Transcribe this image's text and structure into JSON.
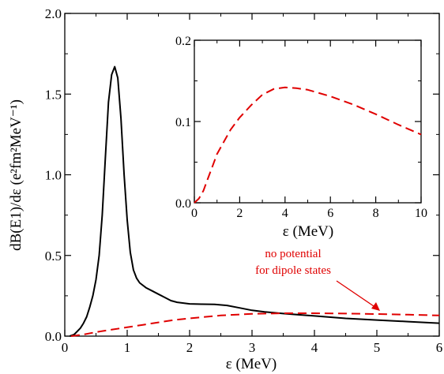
{
  "chart_data": [
    {
      "type": "line",
      "xlabel": "ε  (MeV)",
      "ylabel": "dB(E1)/dε  (e²fm²MeV⁻¹)",
      "xlim": [
        0,
        6
      ],
      "ylim": [
        0,
        2.0
      ],
      "x_ticks": [
        "0",
        "1",
        "2",
        "3",
        "4",
        "5",
        "6"
      ],
      "y_ticks": [
        "0.0",
        "0.5",
        "1.0",
        "1.5",
        "2.0"
      ],
      "series": [
        {
          "color": "#000000",
          "style": "solid",
          "x": [
            0.08,
            0.15,
            0.2,
            0.25,
            0.3,
            0.35,
            0.4,
            0.45,
            0.5,
            0.55,
            0.6,
            0.65,
            0.7,
            0.75,
            0.8,
            0.85,
            0.9,
            0.95,
            1.0,
            1.05,
            1.1,
            1.15,
            1.2,
            1.3,
            1.4,
            1.5,
            1.6,
            1.7,
            1.8,
            1.9,
            2.0,
            2.2,
            2.4,
            2.6,
            2.8,
            3.0,
            3.2,
            3.5,
            4.0,
            4.5,
            5.0,
            5.5,
            6.0
          ],
          "y": [
            0.0,
            0.01,
            0.03,
            0.05,
            0.08,
            0.12,
            0.18,
            0.25,
            0.35,
            0.5,
            0.75,
            1.1,
            1.45,
            1.62,
            1.67,
            1.6,
            1.35,
            1.0,
            0.72,
            0.52,
            0.41,
            0.36,
            0.33,
            0.3,
            0.28,
            0.26,
            0.24,
            0.22,
            0.21,
            0.205,
            0.2,
            0.198,
            0.197,
            0.19,
            0.175,
            0.16,
            0.15,
            0.14,
            0.125,
            0.11,
            0.1,
            0.09,
            0.08
          ]
        },
        {
          "color": "#e00000",
          "style": "dashed",
          "x": [
            0.1,
            0.3,
            0.5,
            0.75,
            1.0,
            1.25,
            1.5,
            1.75,
            2.0,
            2.5,
            3.0,
            3.5,
            4.0,
            4.5,
            5.0,
            5.5,
            6.0
          ],
          "y": [
            0.0,
            0.01,
            0.025,
            0.04,
            0.055,
            0.07,
            0.085,
            0.1,
            0.11,
            0.128,
            0.138,
            0.142,
            0.142,
            0.14,
            0.137,
            0.133,
            0.128
          ]
        }
      ],
      "annotations": [
        "no potential",
        "for dipole states"
      ]
    },
    {
      "type": "line",
      "xlabel": "ε  (MeV)",
      "ylabel": "",
      "xlim": [
        0,
        10
      ],
      "ylim": [
        0,
        0.2
      ],
      "x_ticks": [
        "0",
        "2",
        "4",
        "6",
        "8",
        "10"
      ],
      "y_ticks": [
        "0.0",
        "0.1",
        "0.2"
      ],
      "series": [
        {
          "color": "#e00000",
          "style": "dashed",
          "x": [
            0.0,
            0.2,
            0.4,
            0.6,
            0.8,
            1.0,
            1.3,
            1.6,
            2.0,
            2.5,
            3.0,
            3.5,
            4.0,
            4.5,
            5.0,
            6.0,
            7.0,
            8.0,
            9.0,
            10.0
          ],
          "y": [
            0.0,
            0.005,
            0.015,
            0.03,
            0.045,
            0.06,
            0.075,
            0.09,
            0.105,
            0.12,
            0.133,
            0.14,
            0.142,
            0.141,
            0.139,
            0.131,
            0.121,
            0.109,
            0.096,
            0.084
          ]
        }
      ]
    }
  ]
}
